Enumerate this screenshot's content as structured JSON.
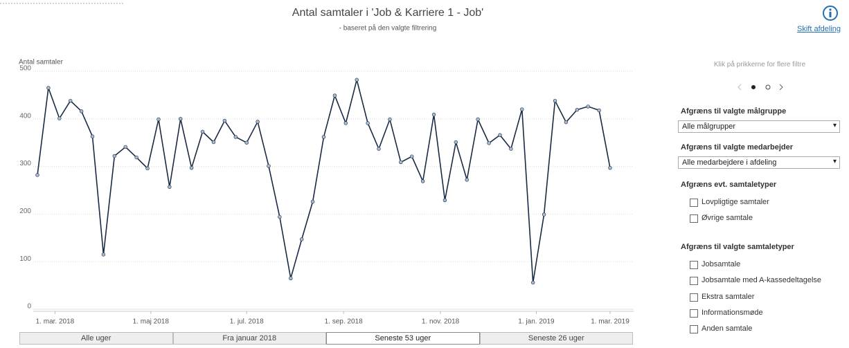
{
  "chart_data": {
    "type": "line",
    "title": "Antal samtaler i 'Job & Karriere 1 - Job'",
    "subtitle": "- baseret på den valgte filtrering",
    "y_label": "Antal samtaler",
    "color": "#1a2a44",
    "marker_color": "#a9bccf",
    "x": [
      0,
      1,
      2,
      3,
      4,
      5,
      6,
      7,
      8,
      9,
      10,
      11,
      12,
      13,
      14,
      15,
      16,
      17,
      18,
      19,
      20,
      21,
      22,
      23,
      24,
      25,
      26,
      27,
      28,
      29,
      30,
      31,
      32,
      33,
      34,
      35,
      36,
      37,
      38,
      39,
      40,
      41,
      42,
      43,
      44,
      45,
      46,
      47,
      48,
      49,
      50,
      51,
      52
    ],
    "values": [
      282,
      465,
      401,
      438,
      416,
      363,
      115,
      322,
      341,
      319,
      296,
      399,
      257,
      400,
      297,
      373,
      351,
      396,
      362,
      350,
      394,
      301,
      194,
      65,
      147,
      226,
      362,
      449,
      391,
      482,
      391,
      337,
      399,
      309,
      321,
      269,
      409,
      229,
      351,
      272,
      399,
      349,
      366,
      337,
      420,
      56,
      199,
      438,
      393,
      419,
      426,
      418,
      297
    ],
    "xlim": [
      0,
      52
    ],
    "xticks": [
      {
        "value": 1.6,
        "label": "1. mar. 2018"
      },
      {
        "value": 10.3,
        "label": "1. maj 2018"
      },
      {
        "value": 19.0,
        "label": "1. jul. 2018"
      },
      {
        "value": 27.8,
        "label": "1. sep. 2018"
      },
      {
        "value": 36.6,
        "label": "1. nov. 2018"
      },
      {
        "value": 45.3,
        "label": "1. jan. 2019"
      },
      {
        "value": 52.0,
        "label": "1. mar. 2019"
      }
    ],
    "ylim": [
      0,
      500
    ],
    "yticks": [
      0,
      100,
      200,
      300,
      400,
      500
    ],
    "grid": true
  },
  "info_link": "Skift afdeling",
  "panel": {
    "hint": "Klik på prikkerne for flere filtre",
    "filters": [
      {
        "heading": "Afgræns til valgte målgruppe",
        "select": "Alle målgrupper"
      },
      {
        "heading": "Afgræns til valgte medarbejder",
        "select": "Alle medarbejdere i afdeling"
      }
    ],
    "checkbox_groups": [
      {
        "heading": "Afgræns evt. samtaletyper",
        "options": [
          "Lovpligtige samtaler",
          "Øvrige samtale"
        ]
      },
      {
        "heading": "Afgræns til valgte samtaletyper",
        "options": [
          "Jobsamtale",
          "Jobsamtale med A-kassedeltagelse",
          "Ekstra samtaler",
          "Informationsmøde",
          "Anden samtale"
        ]
      }
    ]
  },
  "tabs": [
    "Alle uger",
    "Fra januar 2018",
    "Seneste 53 uger",
    "Seneste 26 uger"
  ],
  "selected_tab": 2
}
